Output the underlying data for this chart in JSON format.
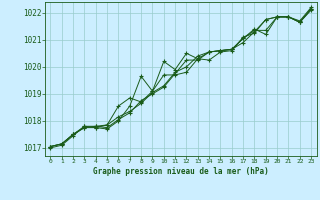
{
  "title": "Graphe pression niveau de la mer (hPa)",
  "background_color": "#cceeff",
  "grid_color": "#99cccc",
  "line_color": "#1a5c1a",
  "marker_color": "#1a5c1a",
  "xlim": [
    -0.5,
    23.5
  ],
  "ylim": [
    1016.7,
    1022.4
  ],
  "yticks": [
    1017,
    1018,
    1019,
    1020,
    1021,
    1022
  ],
  "xticks": [
    0,
    1,
    2,
    3,
    4,
    5,
    6,
    7,
    8,
    9,
    10,
    11,
    12,
    13,
    14,
    15,
    16,
    17,
    18,
    19,
    20,
    21,
    22,
    23
  ],
  "series": [
    [
      1017.0,
      1017.1,
      1017.45,
      1017.8,
      1017.8,
      1017.75,
      1018.05,
      1018.3,
      1018.75,
      1019.0,
      1019.25,
      1019.75,
      1020.25,
      1020.25,
      1020.55,
      1020.6,
      1020.65,
      1020.9,
      1021.3,
      1021.75,
      1021.85,
      1021.85,
      1021.65,
      1022.1
    ],
    [
      1017.05,
      1017.15,
      1017.5,
      1017.8,
      1017.75,
      1017.7,
      1018.0,
      1018.55,
      1019.65,
      1019.1,
      1020.2,
      1019.9,
      1020.5,
      1020.3,
      1020.25,
      1020.55,
      1020.6,
      1021.1,
      1021.25,
      1021.75,
      1021.85,
      1021.85,
      1021.65,
      1022.15
    ],
    [
      1017.05,
      1017.15,
      1017.5,
      1017.75,
      1017.75,
      1017.85,
      1018.55,
      1018.85,
      1018.7,
      1019.1,
      1019.7,
      1019.7,
      1019.8,
      1020.3,
      1020.55,
      1020.6,
      1020.65,
      1021.05,
      1021.4,
      1021.2,
      1021.85,
      1021.85,
      1021.65,
      1022.15
    ],
    [
      1017.05,
      1017.15,
      1017.5,
      1017.75,
      1017.8,
      1017.85,
      1018.15,
      1018.35,
      1018.65,
      1019.05,
      1019.3,
      1019.8,
      1020.0,
      1020.4,
      1020.55,
      1020.6,
      1020.65,
      1021.05,
      1021.35,
      1021.35,
      1021.85,
      1021.85,
      1021.7,
      1022.2
    ]
  ]
}
